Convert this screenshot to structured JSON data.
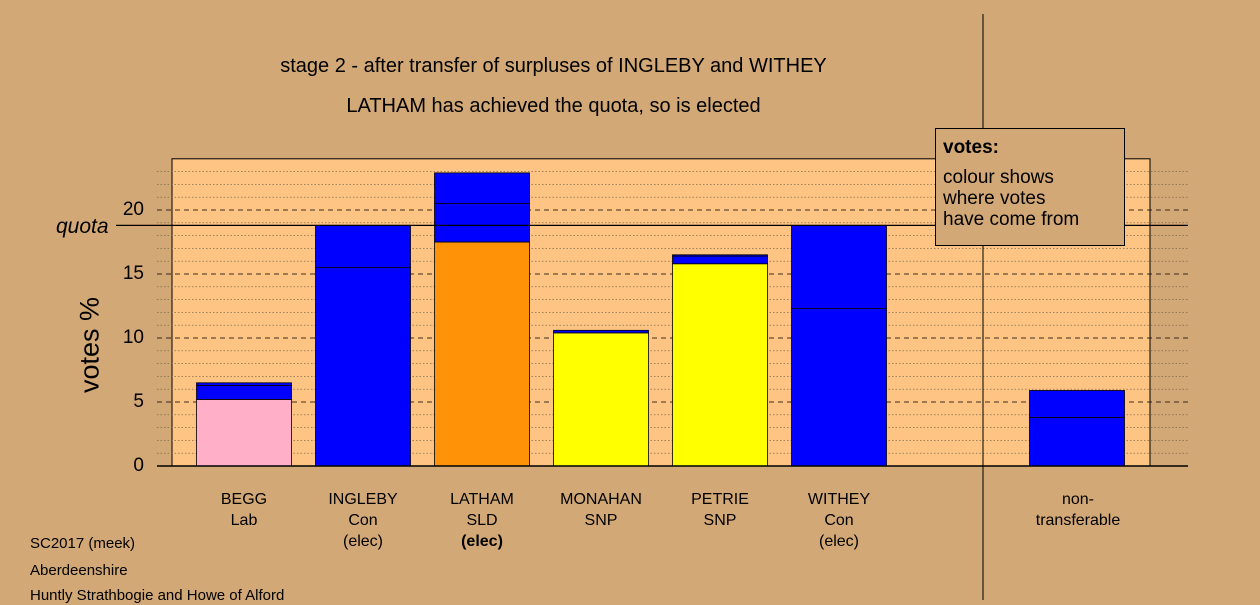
{
  "titles": {
    "line1": "stage 2 - after transfer of surpluses of INGLEBY and WITHEY",
    "line2": "LATHAM has achieved the quota, so is elected"
  },
  "legend": {
    "title": "votes:",
    "line1": "colour shows",
    "line2": "where votes",
    "line3": "have come from"
  },
  "footer": {
    "line1": "SC2017 (meek)",
    "line2": "Aberdeenshire",
    "line3": "Huntly Strathbogie and Howe of Alford"
  },
  "colors": {
    "background": "#d2a877",
    "plot_background": "#fdc483",
    "Lab": "#ffb0c8",
    "Con": "#0000ff",
    "SLD": "#ff9207",
    "SNP": "#ffff00"
  },
  "chart_data": {
    "type": "bar",
    "stacked": true,
    "ylabel": "votes %",
    "ylim": [
      0,
      24
    ],
    "yticks": [
      0,
      5,
      10,
      15,
      20
    ],
    "grid": true,
    "quota": 18.8,
    "quota_label": "quota",
    "categories": [
      {
        "name": "BEGG",
        "party": "Lab",
        "status": ""
      },
      {
        "name": "INGLEBY",
        "party": "Con",
        "status": "(elec)"
      },
      {
        "name": "LATHAM",
        "party": "SLD",
        "status": "(elec)",
        "status_bold": true
      },
      {
        "name": "MONAHAN",
        "party": "SNP",
        "status": ""
      },
      {
        "name": "PETRIE",
        "party": "SNP",
        "status": ""
      },
      {
        "name": "WITHEY",
        "party": "Con",
        "status": "(elec)"
      },
      {
        "name": "non-",
        "party": "transferable",
        "status": ""
      }
    ],
    "bars": [
      {
        "candidate": "BEGG",
        "segments": [
          {
            "from": "Lab",
            "value": 5.2
          },
          {
            "from": "Con",
            "value": 1.1
          },
          {
            "from": "Con",
            "value": 0.2
          }
        ]
      },
      {
        "candidate": "INGLEBY",
        "segments": [
          {
            "from": "Con",
            "value": 15.5
          },
          {
            "from": "Con",
            "value": 3.3
          }
        ]
      },
      {
        "candidate": "LATHAM",
        "segments": [
          {
            "from": "SLD",
            "value": 17.5
          },
          {
            "from": "Con",
            "value": 3.0
          },
          {
            "from": "Con",
            "value": 2.4
          }
        ]
      },
      {
        "candidate": "MONAHAN",
        "segments": [
          {
            "from": "SNP",
            "value": 10.4
          },
          {
            "from": "Con",
            "value": 0.2
          }
        ]
      },
      {
        "candidate": "PETRIE",
        "segments": [
          {
            "from": "SNP",
            "value": 15.8
          },
          {
            "from": "Con",
            "value": 0.6
          },
          {
            "from": "Con",
            "value": 0.1
          }
        ]
      },
      {
        "candidate": "WITHEY",
        "segments": [
          {
            "from": "Con",
            "value": 12.3
          },
          {
            "from": "Con",
            "value": 6.5
          }
        ]
      },
      {
        "candidate": "non-transferable",
        "segments": [
          {
            "from": "Con",
            "value": 3.8
          },
          {
            "from": "Con",
            "value": 2.1
          }
        ]
      }
    ]
  }
}
